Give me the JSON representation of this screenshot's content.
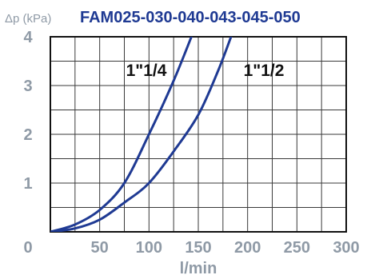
{
  "header": {
    "unit_label": "Δp (kPa)",
    "title": "FAM025-030-040-043-045-050"
  },
  "chart_data": {
    "type": "line",
    "title": "FAM025-030-040-043-045-050",
    "xlabel": "l/min",
    "ylabel": "Δp (kPa)",
    "xlim": [
      0,
      300
    ],
    "ylim": [
      0,
      4
    ],
    "x_ticks": [
      "0",
      "50",
      "100",
      "150",
      "200",
      "250",
      "300"
    ],
    "y_ticks": [
      "1",
      "2",
      "3",
      "4"
    ],
    "grid": true,
    "series": [
      {
        "name": "1\"1/4",
        "color": "#1f3a93",
        "x": [
          0,
          25,
          50,
          75,
          100,
          125,
          145
        ],
        "y": [
          0,
          0.15,
          0.45,
          1.0,
          2.0,
          3.1,
          4.1
        ]
      },
      {
        "name": "1\"1/2",
        "color": "#1f3a93",
        "x": [
          0,
          25,
          50,
          75,
          100,
          125,
          150,
          170,
          185
        ],
        "y": [
          0,
          0.07,
          0.25,
          0.6,
          1.0,
          1.65,
          2.4,
          3.3,
          4.1
        ]
      }
    ]
  }
}
